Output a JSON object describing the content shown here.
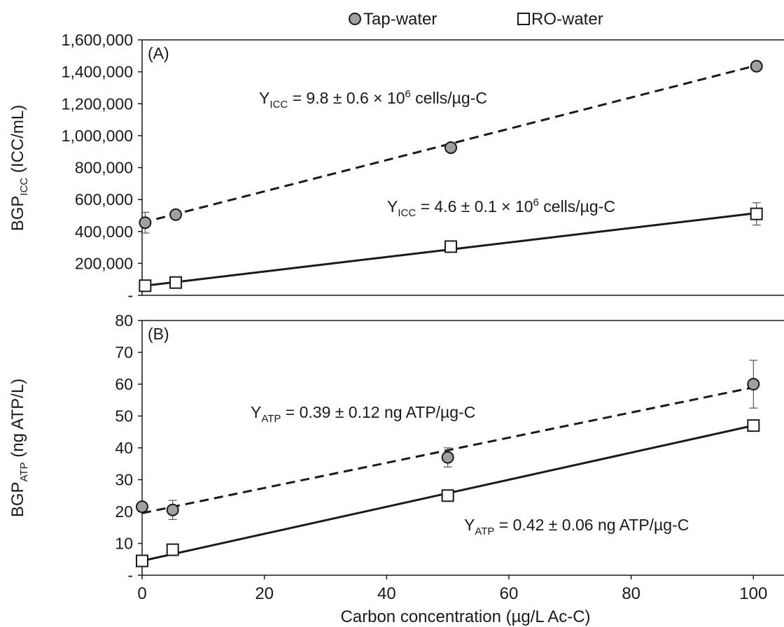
{
  "legend": {
    "entries": [
      {
        "label": "Tap-water",
        "marker": "circle",
        "fill": "#a0a0a0",
        "line": "dashed"
      },
      {
        "label": "RO-water",
        "marker": "square",
        "fill": "#ffffff",
        "line": "solid"
      }
    ],
    "placement": "top"
  },
  "x_axis": {
    "label": "Carbon concentration (µg/L Ac-C)",
    "ticks": [
      0,
      20,
      40,
      60,
      80,
      100
    ],
    "tick_labels": [
      "0",
      "20",
      "40",
      "60",
      "80",
      "100"
    ],
    "range": [
      0,
      105
    ]
  },
  "panels": [
    {
      "id": "A",
      "panel_label": "(A)",
      "y_label_main": "BGP",
      "y_label_sub": "ICC",
      "y_label_rest": " (ICC/mL)",
      "y_range": [
        0,
        1600000
      ],
      "y_ticks": [
        0,
        200000,
        400000,
        600000,
        800000,
        1000000,
        1200000,
        1400000,
        1600000
      ],
      "y_tick_labels": [
        "-",
        "200,000",
        "400,000",
        "600,000",
        "800,000",
        "1,000,000",
        "1,200,000",
        "1,400,000",
        "1,600,000"
      ],
      "annotations": [
        {
          "main": "Y",
          "sub": "ICC",
          "text": " = 9.8 ± 0.6 × 10",
          "sup": "6",
          "tail": " cells/µg-C"
        },
        {
          "main": "Y",
          "sub": "ICC",
          "text": " = 4.6 ± 0.1 × 10",
          "sup": "6",
          "tail": " cells/µg-C"
        }
      ]
    },
    {
      "id": "B",
      "panel_label": "(B)",
      "y_label_main": "BGP",
      "y_label_sub": "ATP",
      "y_label_rest": " (ng ATP/L)",
      "y_range": [
        0,
        80
      ],
      "y_ticks": [
        0,
        10,
        20,
        30,
        40,
        50,
        60,
        70,
        80
      ],
      "y_tick_labels": [
        "-",
        "10",
        "20",
        "30",
        "40",
        "50",
        "60",
        "70",
        "80"
      ],
      "annotations": [
        {
          "main": "Y",
          "sub": "ATP",
          "text": " = 0.39 ± 0.12 ng ATP/µg-C",
          "sup": "",
          "tail": ""
        },
        {
          "main": "Y",
          "sub": "ATP",
          "text": " = 0.42 ± 0.06 ng ATP/µg-C",
          "sup": "",
          "tail": ""
        }
      ]
    }
  ],
  "chart_data": [
    {
      "type": "scatter",
      "panel": "(A)",
      "xlabel": "Carbon concentration (µg/L Ac-C)",
      "ylabel": "BGPICC (ICC/mL)",
      "xlim": [
        0,
        105
      ],
      "ylim": [
        0,
        1600000
      ],
      "grid": false,
      "legend_placement": "top",
      "series": [
        {
          "name": "Tap-water",
          "x": [
            0.5,
            5.5,
            50.5,
            100.5
          ],
          "y": [
            455000,
            505000,
            925000,
            1435000
          ],
          "error": [
            65000,
            0,
            0,
            0
          ],
          "fit": {
            "x": [
              0,
              100.5
            ],
            "y": [
              455000,
              1440000
            ],
            "style": "dashed"
          }
        },
        {
          "name": "RO-water",
          "x": [
            0.5,
            5.5,
            50.5,
            100.5
          ],
          "y": [
            60000,
            80000,
            305000,
            510000
          ],
          "error": [
            0,
            0,
            0,
            70000
          ],
          "fit": {
            "x": [
              0,
              100.5
            ],
            "y": [
              58000,
              515000
            ],
            "style": "solid"
          }
        }
      ]
    },
    {
      "type": "scatter",
      "panel": "(B)",
      "xlabel": "Carbon concentration (µg/L Ac-C)",
      "ylabel": "BGPATP (ng ATP/L)",
      "xlim": [
        0,
        105
      ],
      "ylim": [
        0,
        80
      ],
      "grid": false,
      "legend_placement": "top",
      "series": [
        {
          "name": "Tap-water",
          "x": [
            0,
            5,
            50,
            100
          ],
          "y": [
            21.5,
            20.5,
            37.0,
            60.0
          ],
          "error": [
            0,
            3.0,
            3.0,
            7.5
          ],
          "fit": {
            "x": [
              0,
              100
            ],
            "y": [
              19.5,
              59.0
            ],
            "style": "dashed"
          }
        },
        {
          "name": "RO-water",
          "x": [
            0,
            5,
            50,
            100
          ],
          "y": [
            4.5,
            8.0,
            25.0,
            47.0
          ],
          "error": [
            0,
            0,
            0,
            0
          ],
          "fit": {
            "x": [
              0,
              100
            ],
            "y": [
              4.5,
              47.0
            ],
            "style": "solid"
          }
        }
      ]
    }
  ]
}
